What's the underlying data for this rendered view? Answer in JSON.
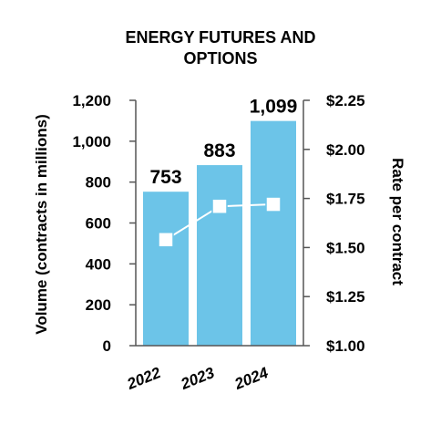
{
  "colors": {
    "bar": "#6cc4e8",
    "line": "#ffffff",
    "marker": "#ffffff",
    "marker_stroke": "#6cc4e8",
    "axis": "#555555",
    "text": "#000000"
  },
  "chart_data": {
    "type": "bar",
    "title_lines": [
      "ENERGY FUTURES AND",
      "OPTIONS"
    ],
    "categories": [
      "2022",
      "2023",
      "2024"
    ],
    "series": [
      {
        "type": "bar",
        "axis": "left",
        "values": [
          753,
          883,
          1099
        ],
        "labels": [
          "753",
          "883",
          "1,099"
        ]
      },
      {
        "type": "line",
        "axis": "right",
        "values": [
          1.54,
          1.71,
          1.72
        ]
      }
    ],
    "ylabel": "Volume (contracts in millions)",
    "ylabel_right": "Rate per contract",
    "ylim": [
      0,
      1200
    ],
    "ylim_right": [
      1.0,
      2.25
    ],
    "yticks": [
      {
        "value": 0,
        "label": "0"
      },
      {
        "value": 200,
        "label": "200"
      },
      {
        "value": 400,
        "label": "400"
      },
      {
        "value": 600,
        "label": "600"
      },
      {
        "value": 800,
        "label": "800"
      },
      {
        "value": 1000,
        "label": "1,000"
      },
      {
        "value": 1200,
        "label": "1,200"
      }
    ],
    "yticks_right": [
      {
        "value": 1.0,
        "label": "$1.00"
      },
      {
        "value": 1.25,
        "label": "$1.25"
      },
      {
        "value": 1.5,
        "label": "$1.50"
      },
      {
        "value": 1.75,
        "label": "$1.75"
      },
      {
        "value": 2.0,
        "label": "$2.00"
      },
      {
        "value": 2.25,
        "label": "$2.25"
      }
    ],
    "grid": false,
    "legend": "none"
  }
}
